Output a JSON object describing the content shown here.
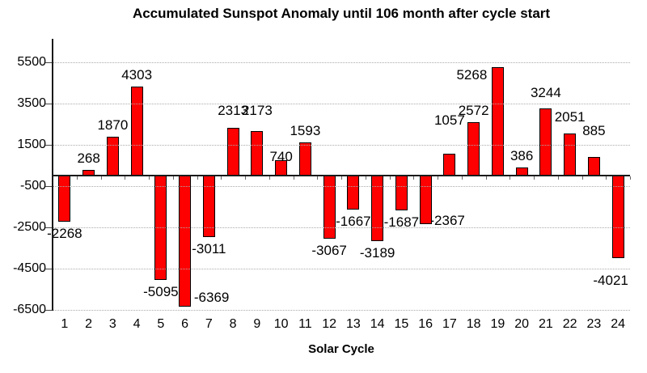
{
  "title": "Accumulated Sunspot Anomaly until 106 month after cycle start",
  "chart_data": {
    "type": "bar",
    "title": "Accumulated Sunspot Anomaly until 106 month after cycle start",
    "xlabel": "Solar Cycle",
    "ylabel": "",
    "categories": [
      "1",
      "2",
      "3",
      "4",
      "5",
      "6",
      "7",
      "8",
      "9",
      "10",
      "11",
      "12",
      "13",
      "14",
      "15",
      "16",
      "17",
      "18",
      "19",
      "20",
      "21",
      "22",
      "23",
      "24"
    ],
    "values": [
      -2268,
      268,
      1870,
      4303,
      -5095,
      -6369,
      -3011,
      2313,
      2173,
      740,
      1593,
      -3067,
      -1667,
      -3189,
      -1687,
      -2367,
      1057,
      2572,
      5268,
      386,
      3244,
      2051,
      885,
      -4021
    ],
    "data_labels": [
      "-2268",
      "268",
      "1870",
      "4303",
      "-5095",
      "-6369",
      "-3011",
      "2313",
      "2173",
      "740",
      "1593",
      "-3067",
      "-1667",
      "-3189",
      "-1687",
      "-2367",
      "1057",
      "2572",
      "5268",
      "386",
      "3244",
      "2051",
      "885",
      "-4021"
    ],
    "yticks": [
      5500,
      3500,
      1500,
      -500,
      -2500,
      -4500,
      -6500
    ],
    "ytick_labels": [
      "5500",
      "3500",
      "1500",
      "-500",
      "-2500",
      "-4500",
      "-6500"
    ],
    "ylim": [
      -6500,
      5500
    ],
    "grid": true,
    "legend": false,
    "colors": {
      "bar_fill": "#ff0000",
      "bar_border": "#000000",
      "gridline": "#ababab",
      "axis_line": "#1a1a1a",
      "text": "#000000"
    },
    "label_offsets_by_index": {
      "5": [
        33,
        -26
      ],
      "7": [
        0,
        -7
      ],
      "8": [
        0,
        -10
      ],
      "9": [
        0,
        10
      ],
      "15": [
        27,
        -19
      ],
      "16": [
        0,
        -27
      ],
      "18": [
        -32,
        25
      ],
      "20": [
        0,
        -5
      ],
      "21": [
        0,
        -5
      ],
      "22": [
        0,
        -18
      ],
      "23": [
        -9,
        13
      ]
    }
  }
}
